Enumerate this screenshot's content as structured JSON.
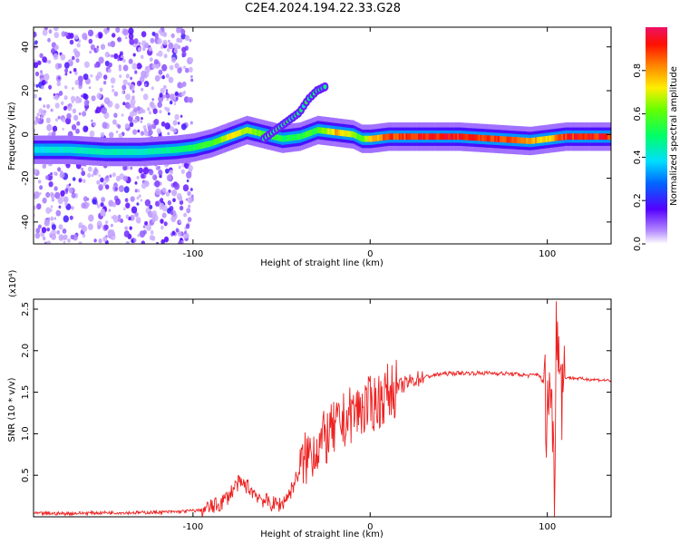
{
  "title": "C2E4.2024.194.22.33.G28",
  "chart_data": [
    {
      "type": "heatmap",
      "title": "C2E4.2024.194.22.33.G28",
      "xlabel": "Height of straight line (km)",
      "ylabel": "Frequency (Hz)",
      "xlim": [
        -190,
        136
      ],
      "ylim": [
        -50,
        49
      ],
      "x_ticks": [
        -100,
        0,
        100
      ],
      "x_tick_labels": [
        "-100",
        "0",
        "100"
      ],
      "y_ticks": [
        -40,
        -20,
        0,
        20,
        40
      ],
      "y_tick_labels": [
        "-40",
        "-20",
        "0",
        "20",
        "40"
      ],
      "colorbar": {
        "label": "Normalized spectral amplitude",
        "range": [
          0,
          1
        ],
        "ticks": [
          0.0,
          0.2,
          0.4,
          0.6,
          0.8
        ],
        "tick_labels": [
          "0.0",
          "0.2",
          "0.4",
          "0.6",
          "0.8"
        ]
      },
      "ridge": {
        "description_points_x": [
          -190,
          -170,
          -150,
          -130,
          -110,
          -100,
          -90,
          -80,
          -70,
          -60,
          -50,
          -40,
          -30,
          -20,
          -10,
          -5,
          0,
          10,
          30,
          50,
          70,
          90,
          100,
          110,
          136
        ],
        "frequency_y": [
          -7,
          -7,
          -8,
          -8,
          -7,
          -6,
          -4,
          -1,
          2,
          0,
          -2,
          -1,
          2,
          1,
          0,
          -2,
          -2,
          -1,
          -1,
          -1,
          -2,
          -3,
          -2,
          -1,
          -1
        ],
        "amplitude": [
          0.4,
          0.45,
          0.45,
          0.45,
          0.5,
          0.55,
          0.6,
          0.75,
          0.7,
          0.6,
          0.55,
          0.55,
          0.6,
          0.8,
          0.7,
          0.6,
          0.8,
          0.9,
          0.95,
          0.95,
          0.95,
          0.85,
          0.75,
          0.95,
          0.95
        ]
      },
      "branch": {
        "x": [
          -60,
          -50,
          -40,
          -35,
          -30,
          -25
        ],
        "y": [
          -2,
          4,
          10,
          16,
          20,
          22
        ]
      }
    },
    {
      "type": "line",
      "xlabel": "Height of straight line (km)",
      "ylabel": "SNR (10 * v/v)",
      "y_multiplier": "(x10⁴)",
      "xlim": [
        -190,
        136
      ],
      "ylim": [
        0,
        2.62
      ],
      "x_ticks": [
        -100,
        0,
        100
      ],
      "x_tick_labels": [
        "-100",
        "0",
        "100"
      ],
      "y_ticks": [
        0.5,
        1.0,
        1.5,
        2.0,
        2.5
      ],
      "y_tick_labels": [
        "0.5",
        "1.0",
        "1.5",
        "2.0",
        "2.5"
      ],
      "series": [
        {
          "color": "#ee2222",
          "x": [
            -190,
            -170,
            -150,
            -130,
            -110,
            -95,
            -85,
            -80,
            -75,
            -70,
            -65,
            -60,
            -55,
            -50,
            -45,
            -40,
            -35,
            -30,
            -25,
            -20,
            -15,
            -10,
            -5,
            0,
            5,
            10,
            15,
            20,
            25,
            30,
            40,
            50,
            60,
            70,
            80,
            90,
            95,
            98,
            100,
            102,
            104,
            105,
            106,
            107,
            108,
            110,
            120,
            136
          ],
          "y": [
            0.04,
            0.04,
            0.05,
            0.05,
            0.06,
            0.08,
            0.15,
            0.25,
            0.4,
            0.38,
            0.28,
            0.2,
            0.15,
            0.15,
            0.3,
            0.55,
            0.75,
            0.85,
            0.95,
            1.05,
            1.15,
            1.25,
            1.3,
            1.35,
            1.4,
            1.5,
            1.55,
            1.6,
            1.65,
            1.68,
            1.72,
            1.73,
            1.73,
            1.73,
            1.72,
            1.7,
            1.72,
            1.6,
            1.2,
            1.75,
            0.2,
            2.55,
            1.9,
            2.3,
            1.5,
            1.68,
            1.66,
            1.64
          ]
        }
      ]
    }
  ]
}
